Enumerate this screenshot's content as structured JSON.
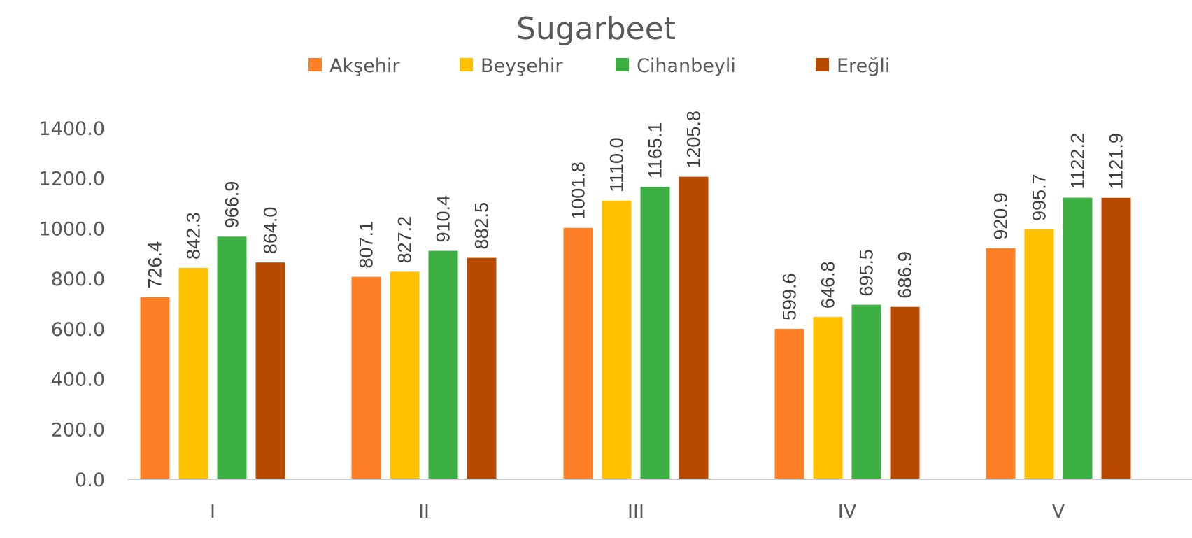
{
  "chart_data": {
    "type": "bar",
    "title": "Sugarbeet",
    "xlabel": "",
    "ylabel": "",
    "categories": [
      "I",
      "II",
      "III",
      "IV",
      "V"
    ],
    "series": [
      {
        "name": "Akşehir",
        "color": "#FF7F27",
        "values": [
          726.4,
          807.1,
          1001.8,
          599.6,
          920.9
        ],
        "labels": [
          "726.4",
          "807.1",
          "1001.8",
          "599.6",
          "920.9"
        ]
      },
      {
        "name": "Beyşehir",
        "color": "#FFC000",
        "values": [
          842.3,
          827.2,
          1110.0,
          646.8,
          995.7
        ],
        "labels": [
          "842.3",
          "827.2",
          "1110.0",
          "646.8",
          "995.7"
        ]
      },
      {
        "name": "Cihanbeyli",
        "color": "#3CB043",
        "values": [
          966.9,
          910.4,
          1165.1,
          695.5,
          1122.2
        ],
        "labels": [
          "966.9",
          "910.4",
          "1165.1",
          "695.5",
          "1122.2"
        ]
      },
      {
        "name": "Ereğli",
        "color": "#B84A00",
        "values": [
          864.0,
          882.5,
          1205.8,
          686.9,
          1121.9
        ],
        "labels": [
          "864.0",
          "882.5",
          "1205.8",
          "686.9",
          "1121.9"
        ]
      }
    ],
    "y_ticks": [
      "0.0",
      "200.0",
      "400.0",
      "600.0",
      "800.0",
      "1000.0",
      "1200.0",
      "1400.0"
    ],
    "ylim": [
      0,
      1400
    ],
    "grid": false,
    "legend_position": "top-center"
  }
}
